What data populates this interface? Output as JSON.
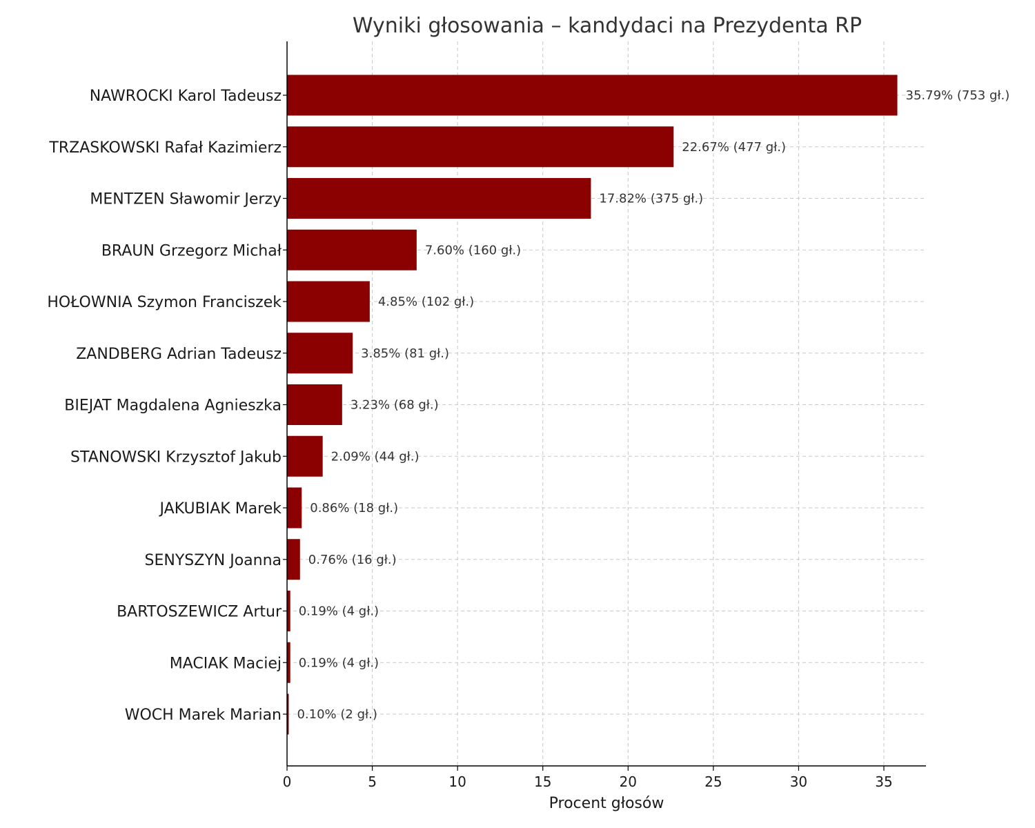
{
  "chart_data": {
    "type": "bar",
    "orientation": "horizontal",
    "title": "Wyniki głosowania – kandydaci na Prezydenta RP",
    "xlabel": "Procent głosów",
    "ylabel": "",
    "xlim": [
      0,
      37.5
    ],
    "xticks": [
      0,
      5,
      10,
      15,
      20,
      25,
      30,
      35
    ],
    "grid": true,
    "bar_color": "#8b0000",
    "categories": [
      "NAWROCKI Karol Tadeusz",
      "TRZASKOWSKI Rafał Kazimierz",
      "MENTZEN Sławomir Jerzy",
      "BRAUN Grzegorz Michał",
      "HOŁOWNIA Szymon Franciszek",
      "ZANDBERG Adrian Tadeusz",
      "BIEJAT Magdalena Agnieszka",
      "STANOWSKI Krzysztof Jakub",
      "JAKUBIAK Marek",
      "SENYSZYN Joanna",
      "BARTOSZEWICZ Artur",
      "MACIAK Maciej",
      "WOCH Marek Marian"
    ],
    "values": [
      35.79,
      22.67,
      17.82,
      7.6,
      4.85,
      3.85,
      3.23,
      2.09,
      0.86,
      0.76,
      0.19,
      0.19,
      0.1
    ],
    "data_labels": [
      "35.79% (753 gł.)",
      "22.67% (477 gł.)",
      "17.82% (375 gł.)",
      "7.60% (160 gł.)",
      "4.85% (102 gł.)",
      "3.85% (81 gł.)",
      "3.23% (68 gł.)",
      "2.09% (44 gł.)",
      "0.86% (18 gł.)",
      "0.76% (16 gł.)",
      "0.19% (4 gł.)",
      "0.19% (4 gł.)",
      "0.10% (2 gł.)"
    ]
  }
}
